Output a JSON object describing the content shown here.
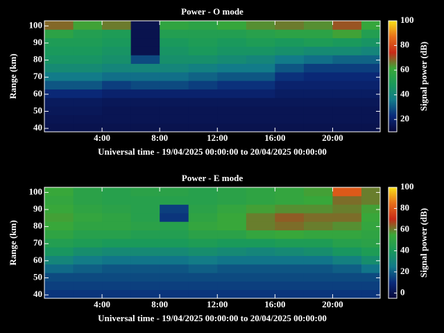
{
  "chart_data": [
    {
      "type": "heatmap",
      "title": "Power - O mode",
      "xlabel": "Universal time - 19/04/2025 00:00:00 to 20/04/2025 00:00:00",
      "ylabel": "Range (km)",
      "colorbar_label": "Signal power (dB)",
      "xbins": [
        0,
        2,
        4,
        6,
        8,
        10,
        12,
        14,
        16,
        18,
        20,
        22,
        23.3
      ],
      "ybins": [
        38,
        43,
        48,
        53,
        58,
        63,
        68,
        73,
        78,
        83,
        88,
        93,
        98,
        103
      ],
      "z": [
        [
          14,
          14,
          14,
          14,
          14,
          14,
          14,
          14,
          14,
          14,
          14,
          14
        ],
        [
          15,
          15,
          15,
          15,
          15,
          15,
          15,
          15,
          15,
          15,
          15,
          15
        ],
        [
          16,
          16,
          15,
          15,
          15,
          15,
          15,
          15,
          15,
          15,
          15,
          15
        ],
        [
          17,
          17,
          16,
          16,
          16,
          16,
          16,
          16,
          16,
          16,
          16,
          16
        ],
        [
          22,
          22,
          20,
          20,
          20,
          20,
          20,
          20,
          18,
          18,
          18,
          18
        ],
        [
          30,
          30,
          26,
          28,
          28,
          26,
          24,
          24,
          20,
          20,
          20,
          20
        ],
        [
          36,
          36,
          34,
          34,
          34,
          32,
          30,
          30,
          24,
          22,
          22,
          22
        ],
        [
          42,
          42,
          40,
          40,
          40,
          38,
          36,
          36,
          30,
          26,
          26,
          26
        ],
        [
          46,
          46,
          44,
          28,
          44,
          44,
          42,
          40,
          36,
          34,
          32,
          32
        ],
        [
          48,
          48,
          46,
          14,
          46,
          48,
          46,
          46,
          44,
          42,
          42,
          40
        ],
        [
          50,
          50,
          48,
          14,
          48,
          50,
          48,
          50,
          48,
          50,
          48,
          46
        ],
        [
          56,
          52,
          50,
          14,
          52,
          52,
          52,
          54,
          56,
          56,
          62,
          52
        ],
        [
          68,
          62,
          66,
          14,
          58,
          56,
          60,
          64,
          66,
          64,
          70,
          60
        ]
      ],
      "xlim": [
        0,
        23.3
      ],
      "ylim": [
        38,
        103
      ],
      "xticks": [
        {
          "value": 4,
          "label": "4:00"
        },
        {
          "value": 8,
          "label": "8:00"
        },
        {
          "value": 12,
          "label": "12:00"
        },
        {
          "value": 16,
          "label": "16:00"
        },
        {
          "value": 20,
          "label": "20:00"
        }
      ],
      "yticks": [
        40,
        50,
        60,
        70,
        80,
        90,
        100
      ],
      "zlim": [
        10,
        100
      ],
      "cticks": [
        20,
        40,
        60,
        80,
        100
      ],
      "colormap": [
        "#08083a",
        "#0a2a7a",
        "#127a8a",
        "#1a9a5a",
        "#3aa838",
        "#c82a18",
        "#e8701a",
        "#f8e018"
      ]
    },
    {
      "type": "heatmap",
      "title": "Power - E mode",
      "xlabel": "Universal time - 19/04/2025 00:00:00 to 20/04/2025 00:00:00",
      "ylabel": "Range (km)",
      "colorbar_label": "Signal power (dB)",
      "xbins": [
        0,
        2,
        4,
        6,
        8,
        10,
        12,
        14,
        16,
        18,
        20,
        22,
        23.3
      ],
      "ybins": [
        38,
        43,
        48,
        53,
        58,
        63,
        68,
        73,
        78,
        83,
        88,
        93,
        98,
        103
      ],
      "z": [
        [
          12,
          12,
          12,
          12,
          12,
          12,
          12,
          12,
          12,
          12,
          12,
          12
        ],
        [
          14,
          14,
          14,
          14,
          14,
          14,
          14,
          14,
          14,
          14,
          14,
          14
        ],
        [
          16,
          16,
          16,
          16,
          16,
          16,
          16,
          16,
          16,
          16,
          16,
          16
        ],
        [
          22,
          20,
          18,
          18,
          18,
          20,
          18,
          18,
          18,
          18,
          20,
          24
        ],
        [
          30,
          26,
          24,
          24,
          24,
          26,
          24,
          24,
          24,
          24,
          28,
          34
        ],
        [
          38,
          34,
          32,
          32,
          32,
          34,
          32,
          30,
          32,
          34,
          38,
          42
        ],
        [
          44,
          42,
          40,
          40,
          40,
          42,
          40,
          40,
          42,
          42,
          46,
          48
        ],
        [
          50,
          46,
          46,
          44,
          44,
          48,
          48,
          52,
          54,
          52,
          52,
          50
        ],
        [
          54,
          50,
          50,
          48,
          46,
          52,
          54,
          60,
          62,
          60,
          58,
          52
        ],
        [
          56,
          52,
          50,
          46,
          12,
          50,
          54,
          60,
          64,
          62,
          62,
          54
        ],
        [
          54,
          50,
          48,
          46,
          14,
          48,
          52,
          56,
          58,
          58,
          60,
          56
        ],
        [
          52,
          48,
          46,
          46,
          46,
          46,
          48,
          50,
          52,
          54,
          62,
          60
        ],
        [
          54,
          48,
          46,
          48,
          48,
          46,
          48,
          50,
          52,
          56,
          80,
          60
        ]
      ],
      "xlim": [
        0,
        23.3
      ],
      "ylim": [
        38,
        103
      ],
      "xticks": [
        {
          "value": 4,
          "label": "4:00"
        },
        {
          "value": 8,
          "label": "8:00"
        },
        {
          "value": 12,
          "label": "12:00"
        },
        {
          "value": 16,
          "label": "16:00"
        },
        {
          "value": 20,
          "label": "20:00"
        }
      ],
      "yticks": [
        40,
        50,
        60,
        70,
        80,
        90,
        100
      ],
      "zlim": [
        -5,
        100
      ],
      "cticks": [
        0,
        20,
        40,
        60,
        80,
        100
      ],
      "colormap": [
        "#08083a",
        "#0a2a7a",
        "#127a8a",
        "#1a9a5a",
        "#3aa838",
        "#c82a18",
        "#e8701a",
        "#f8e018"
      ]
    }
  ]
}
